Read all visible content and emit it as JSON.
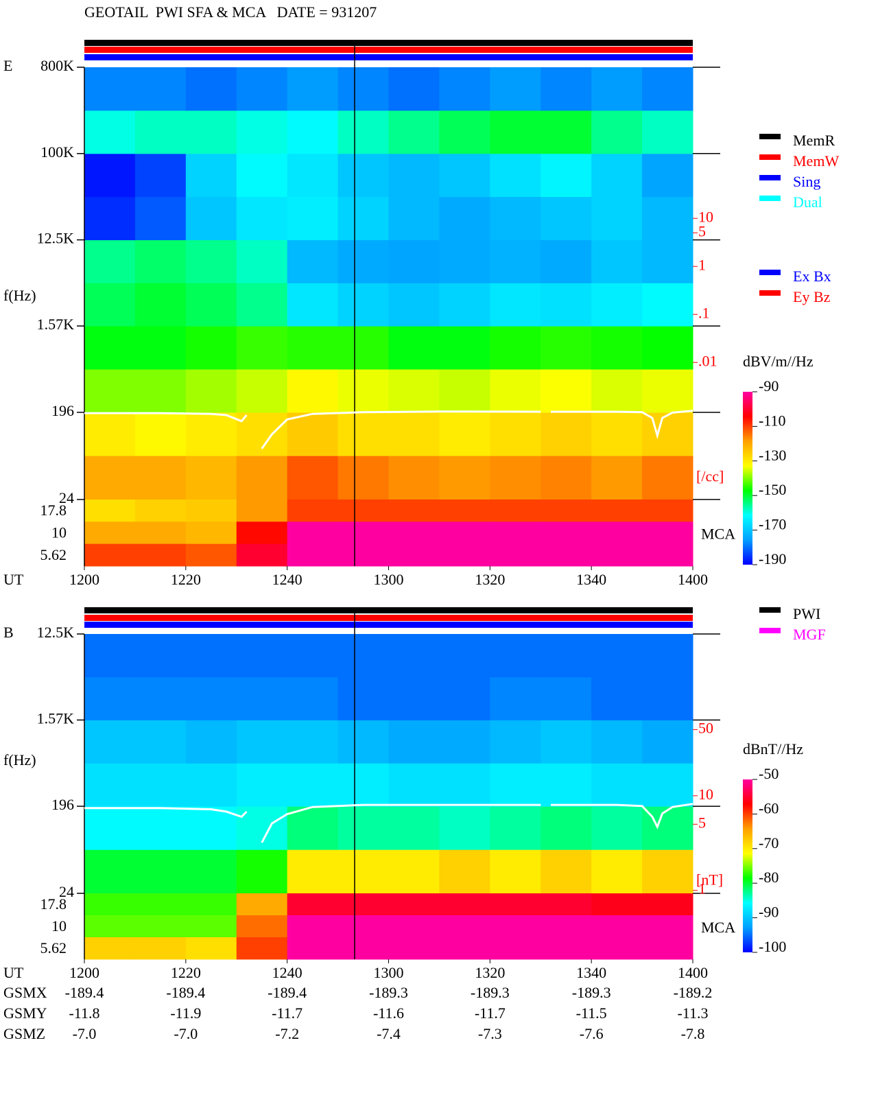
{
  "chart_data": [
    {
      "type": "spectrogram",
      "title": "GEOTAIL  PWI SFA & MCA   DATE = 931207",
      "panel_label": "E",
      "y_label": "f(Hz)",
      "x_label": "UT",
      "xlim": [
        720,
        840
      ],
      "xticks": [
        {
          "value": 720,
          "label": "1200"
        },
        {
          "value": 740,
          "label": "1220"
        },
        {
          "value": 760,
          "label": "1240"
        },
        {
          "value": 780,
          "label": "1300"
        },
        {
          "value": 800,
          "label": "1320"
        },
        {
          "value": 820,
          "label": "1340"
        },
        {
          "value": 840,
          "label": "1400"
        }
      ],
      "ylim": [
        24,
        800000
      ],
      "log_y": true,
      "yticks": [
        {
          "value": 800000,
          "label": "800K"
        },
        {
          "value": 100000,
          "label": "100K"
        },
        {
          "value": 12500,
          "label": "12.5K"
        },
        {
          "value": 1570,
          "label": "1.57K"
        },
        196,
        24
      ],
      "x_bins": [
        720,
        730,
        740,
        750,
        760,
        770,
        780,
        790,
        800,
        810,
        820,
        830,
        840
      ],
      "y_bins": [
        24,
        69,
        196,
        555,
        1570,
        4430,
        12500,
        35400,
        100000,
        283000,
        800000
      ],
      "values": [
        [
          -120,
          -120,
          -122,
          -118,
          -112,
          -115,
          -117,
          -118,
          -117,
          -116,
          -118,
          -115
        ],
        [
          -130,
          -132,
          -130,
          -128,
          -125,
          -128,
          -128,
          -130,
          -128,
          -126,
          -128,
          -126
        ],
        [
          -140,
          -140,
          -138,
          -136,
          -132,
          -134,
          -135,
          -136,
          -134,
          -133,
          -135,
          -134
        ],
        [
          -148,
          -148,
          -146,
          -144,
          -145,
          -145,
          -148,
          -148,
          -146,
          -145,
          -146,
          -147
        ],
        [
          -152,
          -150,
          -152,
          -155,
          -165,
          -168,
          -170,
          -168,
          -165,
          -166,
          -164,
          -162
        ],
        [
          -155,
          -153,
          -155,
          -158,
          -172,
          -174,
          -175,
          -174,
          -173,
          -174,
          -170,
          -172
        ],
        [
          -186,
          -182,
          -170,
          -165,
          -164,
          -168,
          -172,
          -174,
          -172,
          -170,
          -168,
          -172
        ],
        [
          -188,
          -184,
          -168,
          -162,
          -165,
          -170,
          -172,
          -170,
          -166,
          -163,
          -168,
          -175
        ],
        [
          -160,
          -158,
          -158,
          -160,
          -162,
          -158,
          -155,
          -152,
          -150,
          -150,
          -155,
          -158
        ],
        [
          -178,
          -178,
          -180,
          -178,
          -176,
          -178,
          -180,
          -178,
          -176,
          -178,
          -176,
          -178
        ]
      ],
      "mca_label": "MCA",
      "mca_rows": [
        17.8,
        10,
        5.62
      ],
      "mca_values": [
        [
          -128,
          -126,
          -125,
          -118,
          -110,
          -110,
          -110,
          -110,
          -110,
          -110,
          -110,
          -110
        ],
        [
          -120,
          -120,
          -122,
          -105,
          -90,
          -90,
          -90,
          -90,
          -90,
          -90,
          -90,
          -90
        ],
        [
          -110,
          -110,
          -112,
          -100,
          -90,
          -90,
          -90,
          -90,
          -90,
          -90,
          -90,
          -90
        ]
      ],
      "colormap": [
        "#0000ff",
        "#00a0ff",
        "#00ffff",
        "#00ff00",
        "#ffff00",
        "#ffa000",
        "#ff0000",
        "#ff00a0"
      ],
      "colorbar": {
        "label": "dBV/m//Hz",
        "lim": [
          -190,
          -90
        ],
        "ticks": [
          -90,
          -110,
          -130,
          -150,
          -170,
          -190
        ]
      },
      "y2lim": [
        1.4e-05,
        14000
      ],
      "y2_log": true,
      "y2_color": "#ff0000",
      "y2_label": "[/cc]",
      "y2ticks": [
        10,
        5,
        1,
        {
          "value": 0.1,
          "label": ".1"
        },
        {
          "value": 0.01,
          "label": ".01"
        }
      ],
      "line": {
        "axis": "y2",
        "color": "#ffffff",
        "x": [
          720,
          735,
          745,
          748,
          751,
          752,
          754,
          755,
          757,
          760,
          765,
          775,
          790,
          810,
          811,
          812,
          825,
          830,
          832,
          833,
          834,
          836,
          840
        ],
        "values": [
          0.00088,
          0.00088,
          0.00085,
          0.0008,
          0.0006,
          0.0008,
          null,
          0.00016,
          0.00032,
          0.00065,
          0.00085,
          0.00092,
          0.00095,
          0.00094,
          null,
          0.00094,
          0.00094,
          0.00092,
          0.0007,
          0.0003,
          0.0007,
          0.0009,
          0.00098
        ]
      },
      "status_legend": [
        {
          "name": "MemR",
          "color": "#000000"
        },
        {
          "name": "MemW",
          "color": "#ff0000"
        },
        {
          "name": "Sing",
          "color": "#0000ff"
        },
        {
          "name": "Dual",
          "color": "#00ffff"
        }
      ],
      "component_legend": [
        {
          "name": "Ex Bx",
          "color": "#0000ff"
        },
        {
          "name": "Ey Bz",
          "color": "#ff0000"
        }
      ]
    },
    {
      "type": "spectrogram",
      "panel_label": "B",
      "y_label": "f(Hz)",
      "x_label": "UT",
      "xlim": [
        720,
        840
      ],
      "xticks": [
        {
          "value": 720,
          "label": "1200"
        },
        {
          "value": 740,
          "label": "1220"
        },
        {
          "value": 760,
          "label": "1240"
        },
        {
          "value": 780,
          "label": "1300"
        },
        {
          "value": 800,
          "label": "1320"
        },
        {
          "value": 820,
          "label": "1340"
        },
        {
          "value": 840,
          "label": "1400"
        }
      ],
      "ylim": [
        24,
        12500
      ],
      "log_y": true,
      "yticks": [
        {
          "value": 12500,
          "label": "12.5K"
        },
        {
          "value": 1570,
          "label": "1.57K"
        },
        196,
        24
      ],
      "x_bins": [
        720,
        730,
        740,
        750,
        760,
        770,
        780,
        790,
        800,
        810,
        820,
        830,
        840
      ],
      "y_bins": [
        24,
        69,
        196,
        555,
        1570,
        4430,
        12500
      ],
      "values": [
        [
          -80,
          -80,
          -80,
          -78,
          -70,
          -70,
          -70,
          -68,
          -70,
          -68,
          -70,
          -68
        ],
        [
          -86,
          -86,
          -86,
          -85,
          -82,
          -83,
          -83,
          -84,
          -83,
          -82,
          -83,
          -82
        ],
        [
          -88,
          -88,
          -88,
          -87,
          -87,
          -87,
          -88,
          -88,
          -87,
          -87,
          -88,
          -88
        ],
        [
          -90,
          -90,
          -91,
          -90,
          -90,
          -91,
          -92,
          -92,
          -91,
          -90,
          -91,
          -92
        ],
        [
          -94,
          -94,
          -94,
          -94,
          -94,
          -95,
          -95,
          -95,
          -94,
          -94,
          -95,
          -95
        ],
        [
          -95,
          -95,
          -95,
          -95,
          -95,
          -95,
          -95,
          -95,
          -95,
          -95,
          -95,
          -95
        ]
      ],
      "mca_label": "MCA",
      "mca_rows": [
        17.8,
        10,
        5.62
      ],
      "mca_values": [
        [
          -77,
          -77,
          -77,
          -65,
          -55,
          -55,
          -55,
          -55,
          -55,
          -55,
          -56,
          -56
        ],
        [
          -76,
          -76,
          -76,
          -62,
          -50,
          -50,
          -50,
          -50,
          -50,
          -50,
          -50,
          -50
        ],
        [
          -68,
          -68,
          -69,
          -60,
          -50,
          -50,
          -50,
          -50,
          -50,
          -50,
          -50,
          -50
        ]
      ],
      "colormap": [
        "#0000ff",
        "#00a0ff",
        "#00ffff",
        "#00ff00",
        "#ffff00",
        "#ffa000",
        "#ff0000",
        "#ff00a0"
      ],
      "colorbar": {
        "label": "dBnT//Hz",
        "lim": [
          -100,
          -50
        ],
        "ticks": [
          -50,
          -60,
          -70,
          -80,
          -90,
          -100
        ]
      },
      "y2lim": [
        0.93,
        513
      ],
      "y2_log": true,
      "y2_color": "#ff0000",
      "y2_label": "[nT]",
      "y2ticks": [
        50,
        10,
        5,
        1
      ],
      "line": {
        "axis": "y2",
        "color": "#ffffff",
        "x": [
          720,
          735,
          745,
          748,
          751,
          752,
          754,
          755,
          757,
          760,
          765,
          775,
          790,
          810,
          811,
          812,
          825,
          830,
          832,
          833,
          834,
          836,
          840
        ],
        "values": [
          7.4,
          7.4,
          7.2,
          6.8,
          6.0,
          6.8,
          null,
          3.2,
          5.1,
          6.4,
          7.6,
          8,
          8,
          8,
          null,
          8,
          8,
          7.8,
          6,
          4.7,
          6.5,
          7.6,
          8.2
        ]
      },
      "source_legend": [
        {
          "name": "PWI",
          "color": "#000000"
        },
        {
          "name": "MGF",
          "color": "#ff00ff"
        }
      ]
    },
    {
      "type": "table",
      "rows": [
        {
          "label": "GSMX",
          "values": [
            "-189.4",
            "-189.4",
            "-189.4",
            "-189.3",
            "-189.3",
            "-189.3",
            "-189.2"
          ]
        },
        {
          "label": "GSMY",
          "values": [
            "-11.8",
            "-11.9",
            "-11.7",
            "-11.6",
            "-11.7",
            "-11.5",
            "-11.3"
          ]
        },
        {
          "label": "GSMZ",
          "values": [
            "-7.0",
            "-7.0",
            "-7.2",
            "-7.4",
            "-7.3",
            "-7.6",
            "-7.8"
          ]
        }
      ]
    }
  ]
}
